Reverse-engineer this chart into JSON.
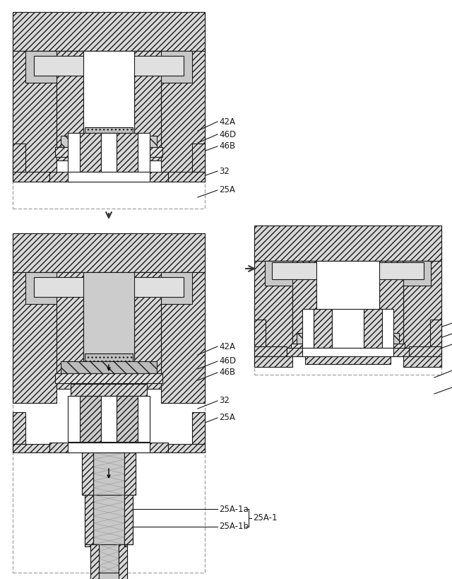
{
  "bg_color": "#ffffff",
  "line_color": "#1a1a1a",
  "hatch_color": "#333333",
  "labels": {
    "42A": "42A",
    "46D": "46D",
    "46B": "46B",
    "32": "32",
    "25A": "25A",
    "25A_1a": "25A-1a",
    "25A_1b": "25A-1b",
    "25A_1": "25A-1"
  },
  "font_size": 8.5,
  "diagram_bg": "#f0f0f0"
}
